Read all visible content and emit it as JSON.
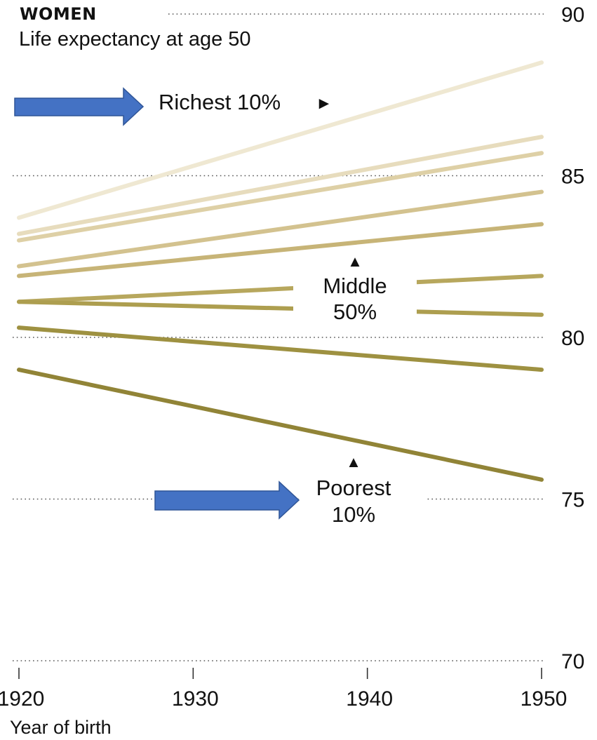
{
  "chart_data": {
    "type": "line",
    "title": "WOMEN",
    "subtitle": "Life expectancy at age 50",
    "xlabel": "Year of birth",
    "ylabel": "",
    "x": [
      1920,
      1950
    ],
    "xlim": [
      1920,
      1950
    ],
    "ylim": [
      70,
      90
    ],
    "yticks": [
      90,
      85,
      80,
      75,
      70
    ],
    "xticks": [
      1920,
      1930,
      1940,
      1950
    ],
    "grid": "dotted horizontal",
    "series": [
      {
        "values": [
          83.7,
          88.5
        ],
        "color": "#efe8d2"
      },
      {
        "values": [
          83.2,
          86.2
        ],
        "color": "#e7dcbd"
      },
      {
        "values": [
          83.0,
          85.7
        ],
        "color": "#ded0a6"
      },
      {
        "values": [
          82.2,
          84.5
        ],
        "color": "#d3c28f"
      },
      {
        "values": [
          81.9,
          83.5
        ],
        "color": "#c7b477"
      },
      {
        "values": [
          81.1,
          81.9
        ],
        "color": "#b7a75d"
      },
      {
        "values": [
          81.1,
          80.7
        ],
        "color": "#ad9e4f"
      },
      {
        "values": [
          80.3,
          79.0
        ],
        "color": "#9e9141"
      },
      {
        "values": [
          79.0,
          75.6
        ],
        "color": "#918437"
      }
    ],
    "annotations": [
      {
        "text": "Richest 10%",
        "marker": "►"
      },
      {
        "text": "Middle",
        "text2": "50%",
        "marker": "▲"
      },
      {
        "text": "Poorest",
        "text2": "10%",
        "marker": "▲"
      }
    ],
    "arrow_color": "#4472c4"
  }
}
